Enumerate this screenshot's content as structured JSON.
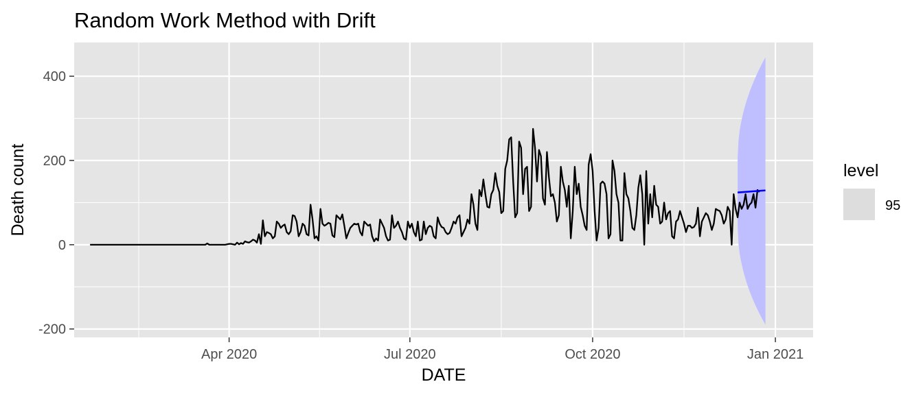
{
  "chart_data": {
    "type": "line",
    "title": "Random Work Method with Drift",
    "xlabel": "DATE",
    "ylabel": "Death count",
    "x_ticks": [
      {
        "date": "2020-04-01",
        "label": "Apr 2020"
      },
      {
        "date": "2020-07-01",
        "label": "Jul 2020"
      },
      {
        "date": "2020-10-01",
        "label": "Oct 2020"
      },
      {
        "date": "2021-01-01",
        "label": "Jan 2021"
      }
    ],
    "y_ticks": [
      -200,
      0,
      200,
      400
    ],
    "xlim": [
      "2020-01-14",
      "2021-01-20"
    ],
    "ylim": [
      -220,
      480
    ],
    "grid": true,
    "legend": {
      "title": "level",
      "position": "right",
      "entries": [
        "95"
      ]
    },
    "series": [
      {
        "role": "observed",
        "color": "#000000",
        "start_date": "2020-01-22",
        "values": [
          0,
          0,
          0,
          0,
          0,
          0,
          0,
          0,
          0,
          0,
          0,
          0,
          0,
          0,
          0,
          0,
          0,
          0,
          0,
          0,
          0,
          0,
          0,
          0,
          0,
          0,
          0,
          0,
          0,
          0,
          0,
          0,
          0,
          0,
          0,
          0,
          0,
          0,
          0,
          0,
          0,
          0,
          0,
          0,
          0,
          0,
          0,
          0,
          0,
          0,
          0,
          0,
          0,
          0,
          0,
          0,
          0,
          0,
          0,
          3,
          0,
          0,
          0,
          0,
          0,
          0,
          0,
          0,
          0,
          1,
          2,
          2,
          1,
          0,
          5,
          1,
          4,
          2,
          8,
          6,
          5,
          8,
          12,
          10,
          5,
          25,
          2,
          58,
          20,
          30,
          28,
          25,
          15,
          20,
          55,
          50,
          40,
          45,
          48,
          30,
          25,
          32,
          70,
          68,
          55,
          20,
          30,
          50,
          45,
          25,
          22,
          95,
          60,
          15,
          20,
          10,
          85,
          50,
          45,
          48,
          52,
          50,
          22,
          18,
          70,
          65,
          60,
          72,
          45,
          15,
          28,
          40,
          45,
          50,
          48,
          50,
          30,
          22,
          55,
          50,
          45,
          48,
          20,
          8,
          15,
          10,
          60,
          50,
          40,
          20,
          10,
          12,
          70,
          40,
          45,
          55,
          40,
          30,
          15,
          12,
          55,
          40,
          50,
          30,
          20,
          55,
          10,
          12,
          55,
          25,
          40,
          45,
          42,
          20,
          15,
          65,
          50,
          42,
          40,
          30,
          25,
          28,
          40,
          55,
          50,
          65,
          70,
          20,
          30,
          40,
          60,
          50,
          120,
          95,
          50,
          35,
          130,
          115,
          155,
          120,
          90,
          88,
          120,
          130,
          170,
          140,
          125,
          75,
          80,
          180,
          200,
          250,
          255,
          150,
          65,
          75,
          245,
          230,
          120,
          180,
          185,
          80,
          90,
          275,
          230,
          150,
          225,
          210,
          110,
          95,
          220,
          160,
          115,
          120,
          100,
          55,
          70,
          185,
          150,
          130,
          90,
          140,
          15,
          80,
          185,
          120,
          145,
          90,
          70,
          45,
          35,
          190,
          215,
          175,
          80,
          10,
          40,
          145,
          150,
          145,
          120,
          15,
          25,
          200,
          175,
          120,
          100,
          10,
          10,
          170,
          120,
          110,
          80,
          40,
          35,
          70,
          135,
          165,
          120,
          0,
          175,
          50,
          120,
          65,
          140,
          95,
          90,
          50,
          55,
          100,
          60,
          75,
          80,
          20,
          15,
          55,
          60,
          80,
          65,
          50,
          30,
          45,
          45,
          40,
          42,
          50,
          88,
          20,
          55,
          65,
          75,
          70,
          55,
          35,
          50,
          85,
          82,
          80,
          70,
          50,
          60,
          90,
          80,
          0,
          120,
          85,
          65,
          100,
          85,
          95,
          120,
          85,
          95,
          100,
          120,
          88,
          130,
          125
        ]
      }
    ],
    "forecast": {
      "color": "#0000ff",
      "band_color": "#bfbfff",
      "level": 95,
      "start_date": "2020-12-13",
      "end_date": "2020-12-27",
      "point_start": 124,
      "point_end": 129,
      "lower_start": 42,
      "lower_end": -190,
      "upper_start": 206,
      "upper_end": 445
    }
  }
}
